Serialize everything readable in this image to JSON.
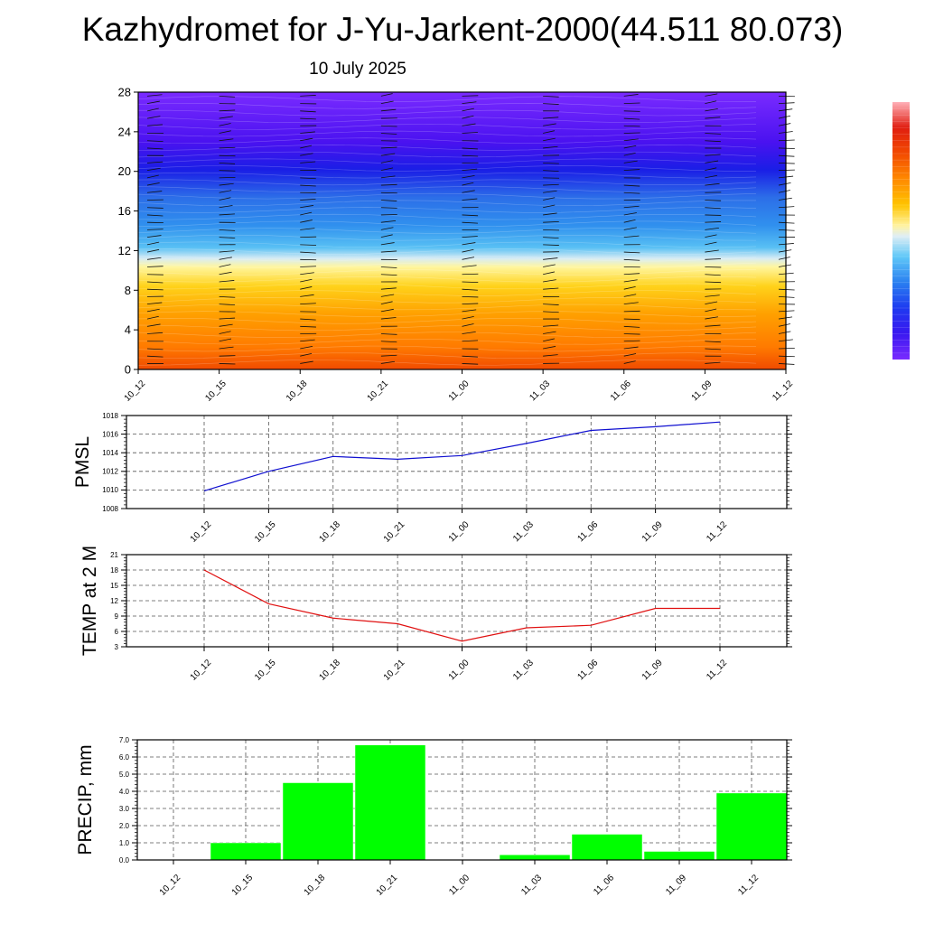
{
  "header": {
    "title": "Kazhydromet for J-Yu-Jarkent-2000(44.511 80.073)",
    "date": "10 July 2025"
  },
  "colors": {
    "pmsl_line": "#1010d0",
    "temp_line": "#e01010",
    "precip_bar": "#00ff00",
    "grid": "#555555",
    "colorbar": [
      "#7a2bff",
      "#4a12f0",
      "#1e1ee6",
      "#1640f0",
      "#1e78ee",
      "#38a8f4",
      "#78d0f8",
      "#d8e8f0",
      "#fff3a0",
      "#ffea40",
      "#ffc400",
      "#ffa000",
      "#ff7a00",
      "#f24a00",
      "#e01e10",
      "#ffb0b8"
    ]
  },
  "chart_data": [
    {
      "type": "heatmap",
      "title": "",
      "xlabel": "",
      "ylabel": "",
      "categories": [
        "10_12",
        "10_15",
        "10_18",
        "10_21",
        "11_00",
        "11_03",
        "11_06",
        "11_09",
        "11_12"
      ],
      "yticks": [
        0,
        4,
        8,
        12,
        16,
        20,
        24,
        28
      ],
      "ylim": [
        0,
        28
      ],
      "description_levels": "warm (orange) near surface, freezing level near 11, cold (violet) aloft",
      "overlay": "wind barbs"
    },
    {
      "type": "line",
      "ylabel": "PMSL",
      "categories": [
        "10_12",
        "10_15",
        "10_18",
        "10_21",
        "11_00",
        "11_03",
        "11_06",
        "11_09",
        "11_12"
      ],
      "series": [
        {
          "values": [
            1009.9,
            1012.0,
            1013.6,
            1013.3,
            1013.7,
            1015.0,
            1016.4,
            1016.8,
            1017.3
          ]
        }
      ],
      "yticks": [
        "1008",
        "1010",
        "1012",
        "1014",
        "1016",
        "1018"
      ],
      "ylim": [
        1008,
        1018
      ],
      "grid": true
    },
    {
      "type": "line",
      "ylabel": "TEMP at 2 M",
      "categories": [
        "10_12",
        "10_15",
        "10_18",
        "10_21",
        "11_00",
        "11_03",
        "11_06",
        "11_09",
        "11_12"
      ],
      "series": [
        {
          "values": [
            18.0,
            11.4,
            8.6,
            7.5,
            4.1,
            6.7,
            7.2,
            10.5,
            10.5
          ]
        }
      ],
      "yticks": [
        "3",
        "6",
        "9",
        "12",
        "15",
        "18",
        "21"
      ],
      "ylim": [
        3,
        21
      ],
      "grid": true
    },
    {
      "type": "bar",
      "ylabel": "PRECIP, mm",
      "categories": [
        "10_12",
        "10_15",
        "10_18",
        "10_21",
        "11_00",
        "11_03",
        "11_06",
        "11_09",
        "11_12"
      ],
      "values": [
        0.0,
        1.0,
        4.5,
        6.7,
        0.0,
        0.3,
        1.5,
        0.5,
        3.9
      ],
      "yticks": [
        "0.0",
        "1.0",
        "2.0",
        "3.0",
        "4.0",
        "5.0",
        "6.0",
        "7.0"
      ],
      "ylim": [
        0,
        7
      ],
      "grid": true
    }
  ]
}
